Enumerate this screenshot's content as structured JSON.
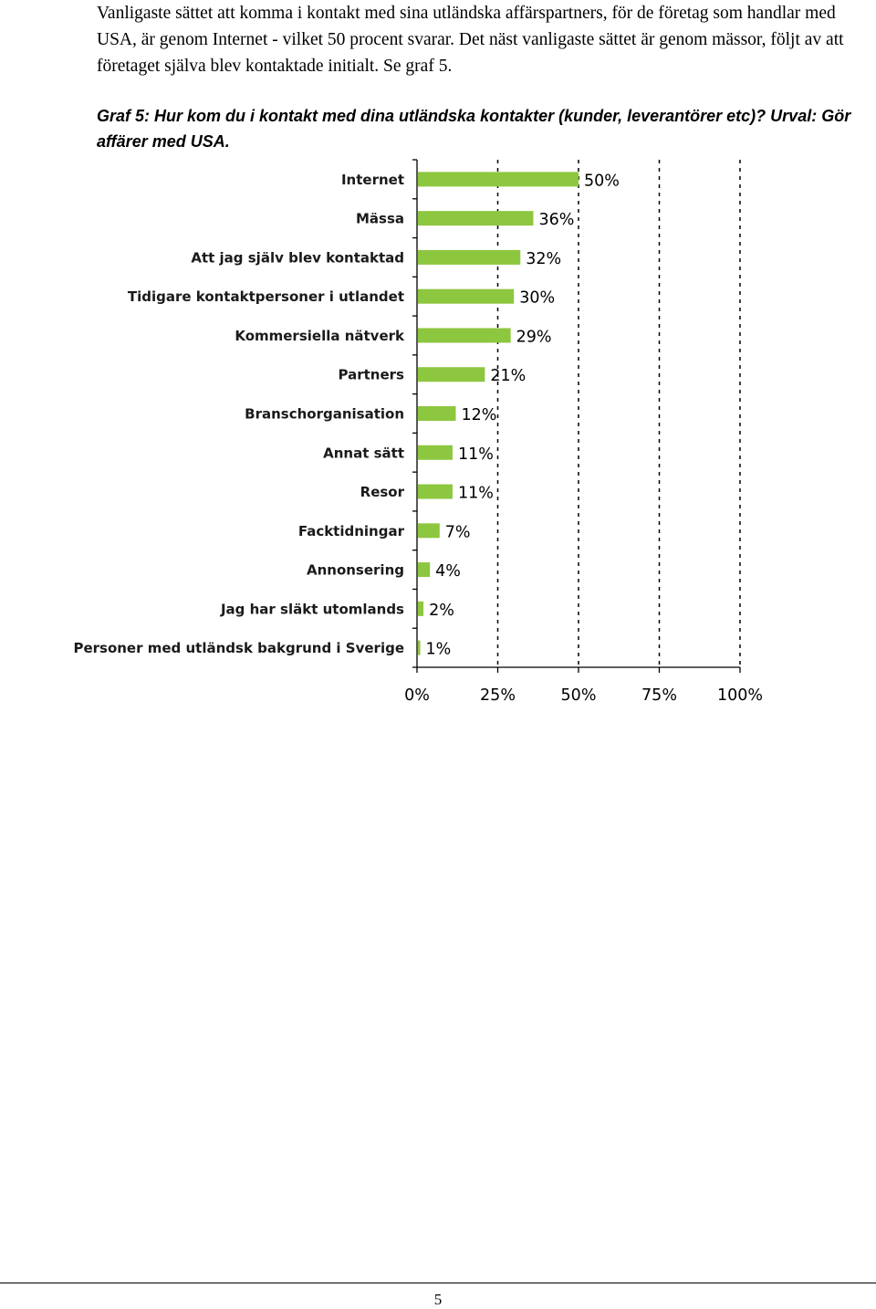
{
  "intro_text": "Vanligaste sättet att komma i kontakt med sina utländska affärspartners, för de företag som handlar med USA, är genom Internet - vilket 50 procent svarar. Det näst vanligaste sättet är genom mässor, följt av att företaget själva blev kontaktade initialt. Se graf 5.",
  "figure_caption": "Graf 5: Hur kom du i kontakt med dina utländska kontakter (kunder, leverantörer etc)? Urval: Gör affärer med USA.",
  "page_number": "5",
  "chart_data": {
    "type": "bar",
    "orientation": "horizontal",
    "categories": [
      "Internet",
      "Mässa",
      "Att jag själv blev kontaktad",
      "Tidigare kontaktpersoner i utlandet",
      "Kommersiella nätverk",
      "Partners",
      "Branschorganisation",
      "Annat sätt",
      "Resor",
      "Facktidningar",
      "Annonsering",
      "Jag har släkt utomlands",
      "Personer med utländsk bakgrund i Sverige"
    ],
    "values": [
      50,
      36,
      32,
      30,
      29,
      21,
      12,
      11,
      11,
      7,
      4,
      2,
      1
    ],
    "value_labels": [
      "50%",
      "36%",
      "32%",
      "30%",
      "29%",
      "21%",
      "12%",
      "11%",
      "11%",
      "7%",
      "4%",
      "2%",
      "1%"
    ],
    "xlim": [
      0,
      100
    ],
    "xticks": [
      0,
      25,
      50,
      75,
      100
    ],
    "xtick_labels": [
      "0%",
      "25%",
      "50%",
      "75%",
      "100%"
    ],
    "grid": "vertical dashed",
    "bar_color": "#8dc63f",
    "title": "",
    "xlabel": "",
    "ylabel": ""
  }
}
